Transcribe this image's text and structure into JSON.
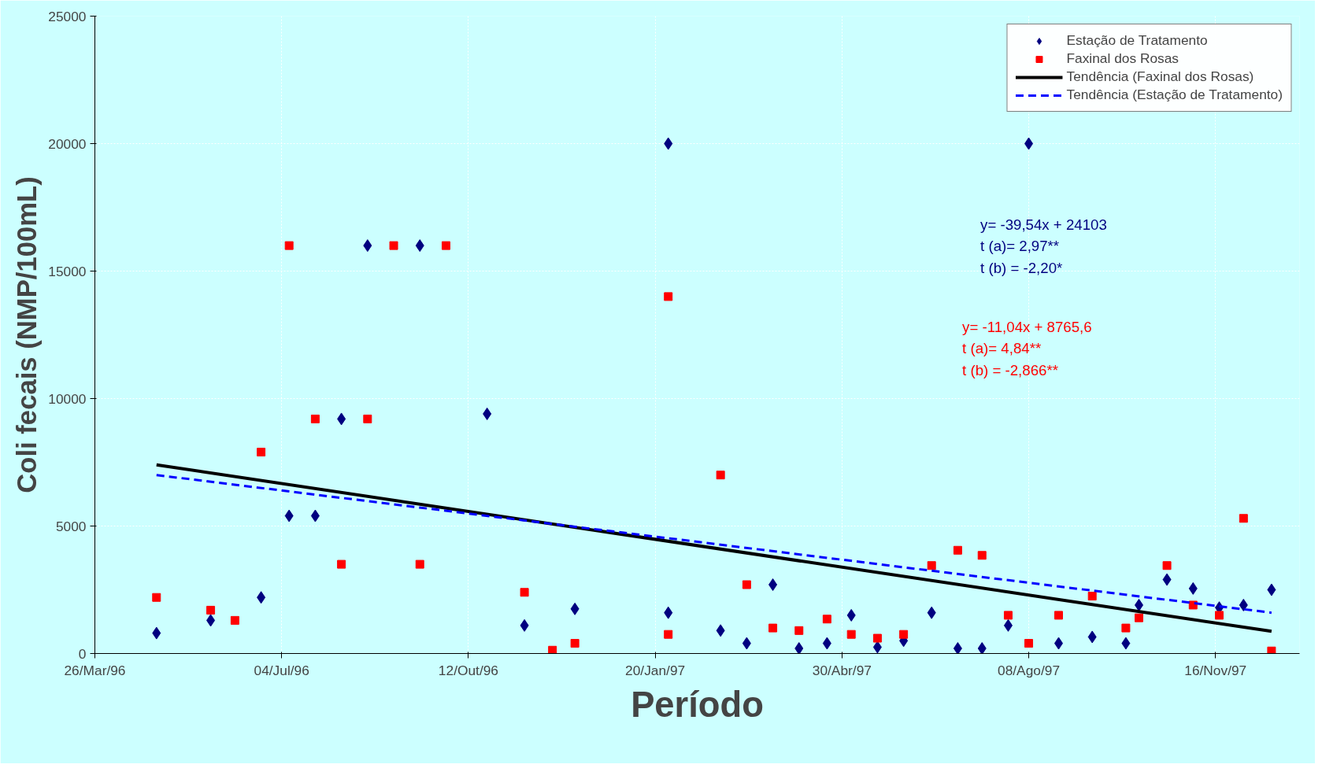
{
  "chart_data": {
    "type": "scatter",
    "xlabel": "Período",
    "ylabel": "Coli fecais (NMP/100mL)",
    "xlim": [
      "1996-03-26",
      "1997-12-31"
    ],
    "ylim": [
      0,
      25000
    ],
    "xticks": [
      {
        "value": "1996-03-26",
        "label": "26/Mar/96"
      },
      {
        "value": "1996-07-04",
        "label": "04/Jul/96"
      },
      {
        "value": "1996-10-12",
        "label": "12/Out/96"
      },
      {
        "value": "1997-01-20",
        "label": "20/Jan/97"
      },
      {
        "value": "1997-04-30",
        "label": "30/Abr/97"
      },
      {
        "value": "1997-08-08",
        "label": "08/Ago/97"
      },
      {
        "value": "1997-11-16",
        "label": "16/Nov/97"
      }
    ],
    "yticks": [
      0,
      5000,
      10000,
      15000,
      20000,
      25000
    ],
    "grid": true,
    "legend": "top right",
    "series": [
      {
        "name": "Estação de Tratamento",
        "marker": "diamond",
        "color": "#000080",
        "x": [
          "1996-04-28",
          "1996-05-27",
          "1996-06-23",
          "1996-07-08",
          "1996-07-22",
          "1996-08-05",
          "1996-08-19",
          "1996-09-16",
          "1996-10-22",
          "1996-11-11",
          "1996-12-08",
          "1997-01-27",
          "1997-01-27",
          "1997-02-24",
          "1997-03-10",
          "1997-03-24",
          "1997-04-07",
          "1997-04-22",
          "1997-05-05",
          "1997-05-19",
          "1997-06-02",
          "1997-06-17",
          "1997-07-01",
          "1997-07-14",
          "1997-07-28",
          "1997-08-08",
          "1997-08-24",
          "1997-09-11",
          "1997-09-29",
          "1997-10-06",
          "1997-10-21",
          "1997-11-04",
          "1997-11-18",
          "1997-12-01",
          "1997-12-16"
        ],
        "values": [
          800,
          1300,
          2200,
          5400,
          5400,
          9200,
          16000,
          16000,
          9400,
          1100,
          1750,
          20000,
          1600,
          900,
          400,
          2700,
          200,
          400,
          1500,
          250,
          500,
          1600,
          200,
          200,
          1100,
          20000,
          400,
          650,
          400,
          1900,
          2900,
          2550,
          1800,
          1900,
          2500
        ]
      },
      {
        "name": "Faxinal dos Rosas",
        "marker": "square",
        "color": "#ff0000",
        "x": [
          "1996-04-28",
          "1996-05-27",
          "1996-06-09",
          "1996-06-23",
          "1996-07-08",
          "1996-07-22",
          "1996-08-05",
          "1996-08-19",
          "1996-09-02",
          "1996-09-16",
          "1996-09-30",
          "1996-11-11",
          "1996-11-26",
          "1996-12-08",
          "1997-01-27",
          "1997-01-27",
          "1997-02-24",
          "1997-03-10",
          "1997-03-24",
          "1997-04-07",
          "1997-04-22",
          "1997-05-05",
          "1997-05-19",
          "1997-06-02",
          "1997-06-17",
          "1997-07-01",
          "1997-07-14",
          "1997-07-28",
          "1997-08-08",
          "1997-08-24",
          "1997-09-11",
          "1997-09-29",
          "1997-10-06",
          "1997-10-21",
          "1997-11-04",
          "1997-11-18",
          "1997-12-01",
          "1997-12-16"
        ],
        "values": [
          2200,
          1700,
          1300,
          7900,
          16000,
          9200,
          3500,
          9200,
          16000,
          3500,
          16000,
          2400,
          130,
          400,
          14000,
          750,
          7000,
          2700,
          1000,
          900,
          1350,
          750,
          600,
          750,
          3450,
          4050,
          3850,
          1500,
          400,
          1500,
          2250,
          1000,
          1400,
          3450,
          1900,
          1500,
          5300,
          100
        ]
      },
      {
        "name": "Tendência (Faxinal dos Rosas)",
        "type": "line",
        "line_style": "solid",
        "color": "#000000",
        "x": [
          "1996-04-28",
          "1997-12-16"
        ],
        "values": [
          7400,
          870
        ]
      },
      {
        "name": "Tendência (Estação de Tratamento)",
        "type": "line",
        "line_style": "dashed",
        "color": "#0000ff",
        "x": [
          "1996-04-28",
          "1997-12-16"
        ],
        "values": [
          7000,
          1600
        ]
      }
    ],
    "annotations": [
      "y= -39,54x + 24103",
      "t (a)=  2,97**",
      "t (b) = -2,20*",
      "y= -11,04x + 8765,6",
      "t (a)=  4,84**",
      "t (b) = -2,866**"
    ]
  }
}
